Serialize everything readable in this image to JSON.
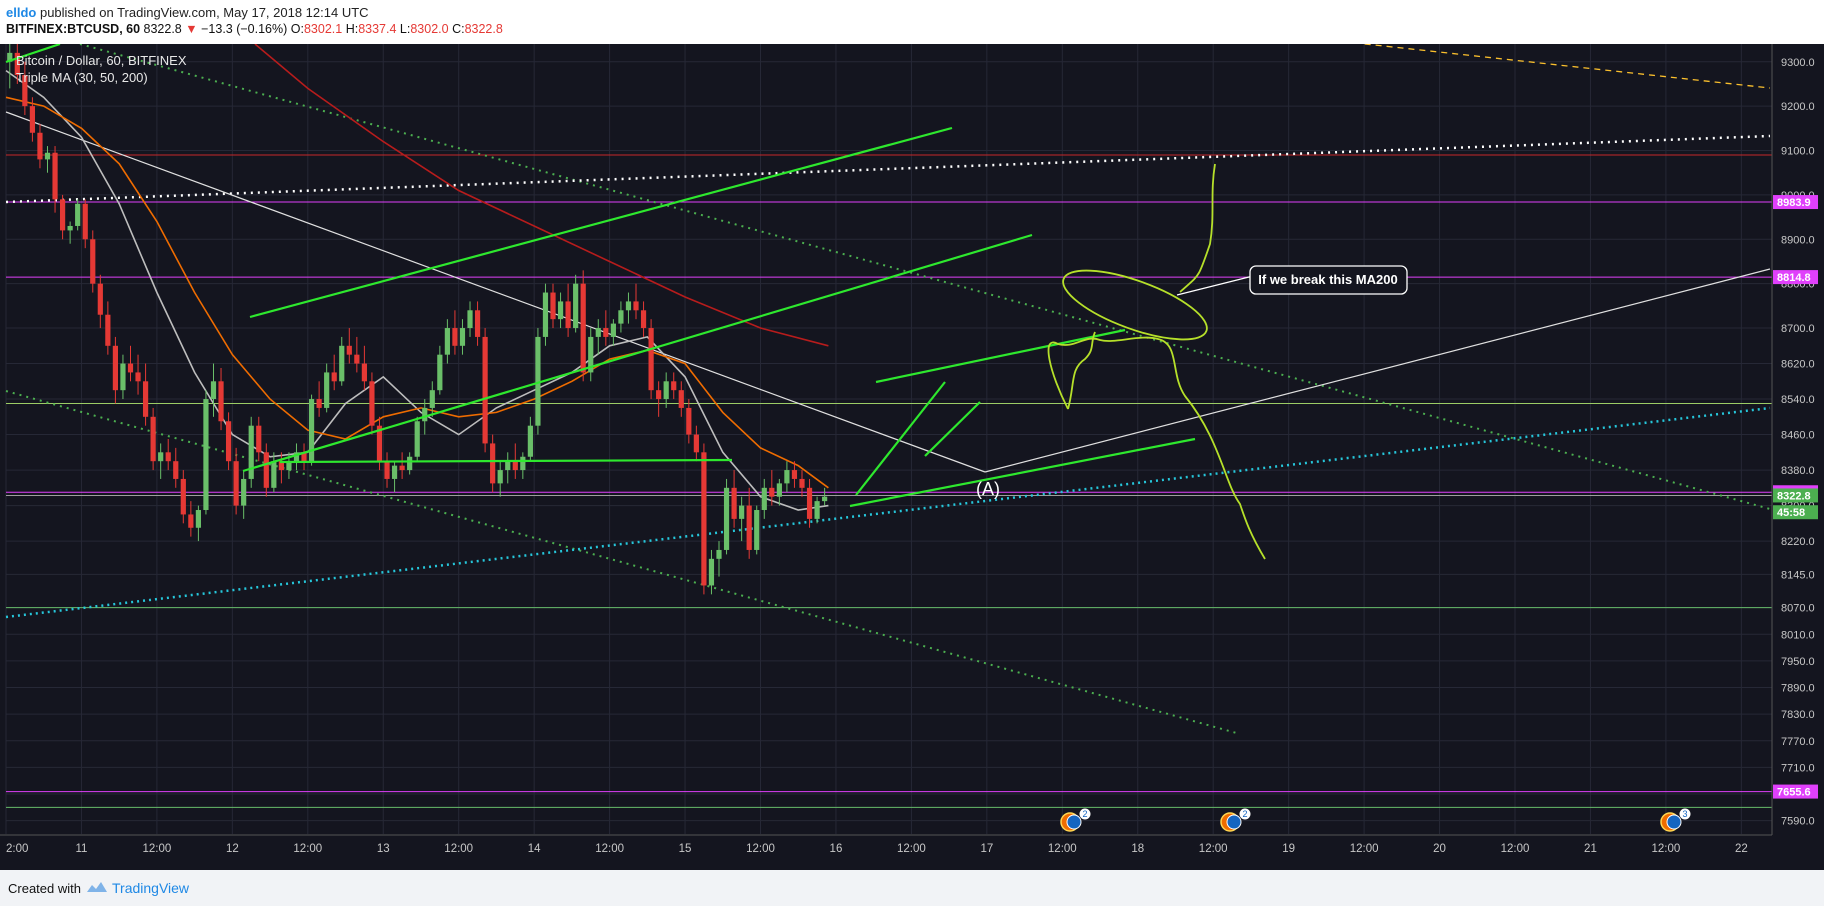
{
  "header": {
    "user": "elldo",
    "published_text": "published on TradingView.com, May 17, 2018 12:14 UTC",
    "symbol": "BITFINEX:BTCUSD, 60",
    "last": "8322.8",
    "change_arrow": "▼",
    "change": "−13.3 (−0.16%)",
    "o_label": "O:",
    "o": "8302.1",
    "h_label": "H:",
    "h": "8337.4",
    "l_label": "L:",
    "l": "8302.0",
    "c_label": "C:",
    "c": "8322.8"
  },
  "legend": {
    "series": "Bitcoin / Dollar, 60, BITFINEX",
    "indicator": "Triple MA (30, 50, 200)"
  },
  "footer": {
    "created_with": "Created with",
    "brand": "TradingView"
  },
  "chart_data": {
    "type": "candlestick",
    "ylim": [
      7560,
      9340
    ],
    "price_ticks": [
      9300,
      9200,
      9100,
      9000,
      8900,
      8800,
      8700,
      8620,
      8540,
      8460,
      8380,
      8300,
      8220,
      8145,
      8070,
      8010,
      7950,
      7890,
      7830,
      7770,
      7710,
      7650,
      7590
    ],
    "time_axis": [
      {
        "t": 0,
        "label": "2:00"
      },
      {
        "t": 1,
        "label": "11"
      },
      {
        "t": 2,
        "label": "12:00"
      },
      {
        "t": 3,
        "label": "12"
      },
      {
        "t": 4,
        "label": "12:00"
      },
      {
        "t": 5,
        "label": "13"
      },
      {
        "t": 6,
        "label": "12:00"
      },
      {
        "t": 7,
        "label": "14"
      },
      {
        "t": 8,
        "label": "12:00"
      },
      {
        "t": 9,
        "label": "15"
      },
      {
        "t": 10,
        "label": "12:00"
      },
      {
        "t": 11,
        "label": "16"
      },
      {
        "t": 12,
        "label": "12:00"
      },
      {
        "t": 13,
        "label": "17"
      },
      {
        "t": 14,
        "label": "12:00"
      },
      {
        "t": 15,
        "label": "18"
      },
      {
        "t": 16,
        "label": "12:00"
      },
      {
        "t": 17,
        "label": "19"
      },
      {
        "t": 18,
        "label": "12:00"
      },
      {
        "t": 19,
        "label": "20"
      },
      {
        "t": 20,
        "label": "12:00"
      },
      {
        "t": 21,
        "label": "21"
      },
      {
        "t": 22,
        "label": "12:00"
      },
      {
        "t": 23,
        "label": "22"
      }
    ],
    "price_labels": [
      {
        "value": 8983.9,
        "text": "8983.9",
        "color": "#e040fb"
      },
      {
        "value": 8814.8,
        "text": "8814.8",
        "color": "#e040fb"
      },
      {
        "value": 8330.0,
        "text": "8330.0",
        "color": "#e040fb"
      },
      {
        "value": 8322.8,
        "text": "8322.8",
        "color": "#4caf50"
      },
      {
        "value": 8285,
        "text": "45:58",
        "color": "#4caf50"
      },
      {
        "value": 7655.6,
        "text": "7655.6",
        "color": "#e040fb"
      }
    ],
    "horizontal_lines": [
      {
        "value": 9090,
        "color": "#c62828"
      },
      {
        "value": 8983.9,
        "color": "#e040fb"
      },
      {
        "value": 8814.8,
        "color": "#e040fb"
      },
      {
        "value": 8530,
        "color": "#9ccc65"
      },
      {
        "value": 8330,
        "color": "#e040fb"
      },
      {
        "value": 8322.8,
        "color": "#9e9e9e"
      },
      {
        "value": 8070,
        "color": "#66bb6a"
      },
      {
        "value": 7655.6,
        "color": "#e040fb"
      },
      {
        "value": 7620,
        "color": "#66bb6a"
      }
    ],
    "candles": [
      [
        0.05,
        9300,
        9340,
        9240,
        9320
      ],
      [
        0.15,
        9320,
        9340,
        9250,
        9270
      ],
      [
        0.25,
        9270,
        9300,
        9180,
        9200
      ],
      [
        0.35,
        9200,
        9220,
        9120,
        9140
      ],
      [
        0.45,
        9140,
        9160,
        9060,
        9080
      ],
      [
        0.55,
        9080,
        9110,
        9050,
        9095
      ],
      [
        0.65,
        9095,
        9110,
        8960,
        8990
      ],
      [
        0.75,
        8990,
        9000,
        8900,
        8920
      ],
      [
        0.85,
        8920,
        8940,
        8890,
        8930
      ],
      [
        0.95,
        8930,
        8990,
        8920,
        8980
      ],
      [
        1.05,
        8980,
        8990,
        8880,
        8900
      ],
      [
        1.15,
        8900,
        8920,
        8780,
        8800
      ],
      [
        1.25,
        8800,
        8820,
        8700,
        8730
      ],
      [
        1.35,
        8730,
        8760,
        8640,
        8660
      ],
      [
        1.45,
        8660,
        8680,
        8530,
        8560
      ],
      [
        1.55,
        8560,
        8640,
        8540,
        8620
      ],
      [
        1.65,
        8620,
        8660,
        8580,
        8600
      ],
      [
        1.75,
        8600,
        8640,
        8550,
        8580
      ],
      [
        1.85,
        8580,
        8620,
        8480,
        8500
      ],
      [
        1.95,
        8500,
        8520,
        8380,
        8400
      ],
      [
        2.05,
        8400,
        8440,
        8360,
        8420
      ],
      [
        2.15,
        8420,
        8450,
        8380,
        8400
      ],
      [
        2.25,
        8400,
        8430,
        8340,
        8360
      ],
      [
        2.35,
        8360,
        8380,
        8260,
        8280
      ],
      [
        2.45,
        8280,
        8310,
        8230,
        8250
      ],
      [
        2.55,
        8250,
        8300,
        8220,
        8290
      ],
      [
        2.65,
        8290,
        8560,
        8280,
        8540
      ],
      [
        2.75,
        8540,
        8620,
        8500,
        8580
      ],
      [
        2.85,
        8580,
        8610,
        8470,
        8490
      ],
      [
        2.95,
        8490,
        8510,
        8380,
        8400
      ],
      [
        3.05,
        8400,
        8430,
        8280,
        8300
      ],
      [
        3.15,
        8300,
        8380,
        8270,
        8360
      ],
      [
        3.25,
        8360,
        8500,
        8340,
        8480
      ],
      [
        3.35,
        8480,
        8500,
        8400,
        8420
      ],
      [
        3.45,
        8420,
        8440,
        8320,
        8340
      ],
      [
        3.55,
        8340,
        8420,
        8330,
        8400
      ],
      [
        3.65,
        8400,
        8420,
        8350,
        8380
      ],
      [
        3.75,
        8380,
        8420,
        8360,
        8400
      ],
      [
        3.85,
        8400,
        8440,
        8380,
        8420
      ],
      [
        3.95,
        8420,
        8440,
        8380,
        8400
      ],
      [
        4.05,
        8400,
        8550,
        8390,
        8540
      ],
      [
        4.15,
        8540,
        8580,
        8500,
        8520
      ],
      [
        4.25,
        8520,
        8620,
        8510,
        8600
      ],
      [
        4.35,
        8600,
        8640,
        8560,
        8580
      ],
      [
        4.45,
        8580,
        8680,
        8570,
        8660
      ],
      [
        4.55,
        8660,
        8700,
        8620,
        8640
      ],
      [
        4.65,
        8640,
        8680,
        8600,
        8620
      ],
      [
        4.75,
        8620,
        8660,
        8560,
        8580
      ],
      [
        4.85,
        8580,
        8600,
        8460,
        8480
      ],
      [
        4.95,
        8480,
        8500,
        8380,
        8400
      ],
      [
        5.05,
        8400,
        8420,
        8340,
        8360
      ],
      [
        5.15,
        8360,
        8400,
        8330,
        8390
      ],
      [
        5.25,
        8390,
        8420,
        8360,
        8380
      ],
      [
        5.35,
        8380,
        8420,
        8370,
        8410
      ],
      [
        5.45,
        8410,
        8500,
        8400,
        8490
      ],
      [
        5.55,
        8490,
        8540,
        8460,
        8520
      ],
      [
        5.65,
        8520,
        8580,
        8500,
        8560
      ],
      [
        5.75,
        8560,
        8660,
        8550,
        8640
      ],
      [
        5.85,
        8640,
        8720,
        8620,
        8700
      ],
      [
        5.95,
        8700,
        8740,
        8640,
        8660
      ],
      [
        6.05,
        8660,
        8720,
        8640,
        8700
      ],
      [
        6.15,
        8700,
        8760,
        8680,
        8740
      ],
      [
        6.25,
        8740,
        8760,
        8660,
        8680
      ],
      [
        6.35,
        8680,
        8700,
        8420,
        8440
      ],
      [
        6.45,
        8440,
        8460,
        8330,
        8350
      ],
      [
        6.55,
        8350,
        8400,
        8320,
        8380
      ],
      [
        6.65,
        8380,
        8420,
        8350,
        8400
      ],
      [
        6.75,
        8400,
        8440,
        8360,
        8380
      ],
      [
        6.85,
        8380,
        8420,
        8360,
        8410
      ],
      [
        6.95,
        8410,
        8500,
        8400,
        8480
      ],
      [
        7.05,
        8480,
        8700,
        8460,
        8680
      ],
      [
        7.15,
        8680,
        8800,
        8660,
        8780
      ],
      [
        7.25,
        8780,
        8800,
        8700,
        8720
      ],
      [
        7.35,
        8720,
        8780,
        8700,
        8760
      ],
      [
        7.45,
        8760,
        8800,
        8680,
        8700
      ],
      [
        7.55,
        8700,
        8820,
        8690,
        8800
      ],
      [
        7.65,
        8800,
        8830,
        8580,
        8600
      ],
      [
        7.75,
        8600,
        8700,
        8580,
        8680
      ],
      [
        7.85,
        8680,
        8720,
        8640,
        8700
      ],
      [
        7.95,
        8700,
        8740,
        8660,
        8680
      ],
      [
        8.05,
        8680,
        8720,
        8660,
        8710
      ],
      [
        8.15,
        8710,
        8760,
        8690,
        8740
      ],
      [
        8.25,
        8740,
        8780,
        8710,
        8760
      ],
      [
        8.35,
        8760,
        8800,
        8720,
        8740
      ],
      [
        8.45,
        8740,
        8760,
        8680,
        8700
      ],
      [
        8.55,
        8700,
        8720,
        8540,
        8560
      ],
      [
        8.65,
        8560,
        8580,
        8500,
        8540
      ],
      [
        8.75,
        8540,
        8600,
        8520,
        8580
      ],
      [
        8.85,
        8580,
        8600,
        8540,
        8560
      ],
      [
        8.95,
        8560,
        8580,
        8500,
        8520
      ],
      [
        9.05,
        8520,
        8540,
        8440,
        8460
      ],
      [
        9.15,
        8460,
        8480,
        8400,
        8420
      ],
      [
        9.25,
        8420,
        8440,
        8100,
        8120
      ],
      [
        9.35,
        8120,
        8200,
        8100,
        8180
      ],
      [
        9.45,
        8180,
        8220,
        8140,
        8200
      ],
      [
        9.55,
        8200,
        8360,
        8190,
        8340
      ],
      [
        9.65,
        8340,
        8380,
        8250,
        8270
      ],
      [
        9.75,
        8270,
        8320,
        8220,
        8300
      ],
      [
        9.85,
        8300,
        8340,
        8180,
        8200
      ],
      [
        9.95,
        8200,
        8300,
        8190,
        8290
      ],
      [
        10.05,
        8290,
        8360,
        8270,
        8340
      ],
      [
        10.15,
        8340,
        8380,
        8300,
        8320
      ],
      [
        10.25,
        8320,
        8360,
        8300,
        8350
      ],
      [
        10.35,
        8350,
        8400,
        8330,
        8380
      ],
      [
        10.45,
        8380,
        8400,
        8340,
        8360
      ],
      [
        10.55,
        8360,
        8380,
        8320,
        8340
      ],
      [
        10.65,
        8340,
        8360,
        8250,
        8270
      ],
      [
        10.75,
        8270,
        8320,
        8260,
        8310
      ],
      [
        10.85,
        8310,
        8340,
        8300,
        8320
      ]
    ],
    "ma_series": [
      {
        "name": "MA30",
        "color": "#bdbdbd",
        "points": [
          [
            0,
            9280
          ],
          [
            0.5,
            9220
          ],
          [
            1.0,
            9130
          ],
          [
            1.5,
            8980
          ],
          [
            2.0,
            8780
          ],
          [
            2.5,
            8600
          ],
          [
            3.0,
            8460
          ],
          [
            3.5,
            8410
          ],
          [
            4.0,
            8420
          ],
          [
            4.5,
            8530
          ],
          [
            5.0,
            8590
          ],
          [
            5.5,
            8510
          ],
          [
            6.0,
            8460
          ],
          [
            6.5,
            8520
          ],
          [
            7.0,
            8560
          ],
          [
            7.5,
            8600
          ],
          [
            8.0,
            8660
          ],
          [
            8.5,
            8680
          ],
          [
            9.0,
            8590
          ],
          [
            9.5,
            8420
          ],
          [
            10.0,
            8320
          ],
          [
            10.5,
            8290
          ],
          [
            10.9,
            8300
          ]
        ]
      },
      {
        "name": "MA50",
        "color": "#ef6c00",
        "points": [
          [
            0,
            9220
          ],
          [
            0.5,
            9200
          ],
          [
            1.0,
            9150
          ],
          [
            1.5,
            9070
          ],
          [
            2.0,
            8940
          ],
          [
            2.5,
            8780
          ],
          [
            3.0,
            8640
          ],
          [
            3.5,
            8540
          ],
          [
            4.0,
            8470
          ],
          [
            4.5,
            8450
          ],
          [
            5.0,
            8500
          ],
          [
            5.5,
            8520
          ],
          [
            6.0,
            8500
          ],
          [
            6.5,
            8510
          ],
          [
            7.0,
            8540
          ],
          [
            7.5,
            8580
          ],
          [
            8.0,
            8630
          ],
          [
            8.5,
            8650
          ],
          [
            9.0,
            8620
          ],
          [
            9.5,
            8510
          ],
          [
            10.0,
            8430
          ],
          [
            10.5,
            8390
          ],
          [
            10.9,
            8340
          ]
        ]
      },
      {
        "name": "MA200",
        "color": "#b71c1c",
        "points": [
          [
            3.3,
            9340
          ],
          [
            4.0,
            9240
          ],
          [
            5.0,
            9120
          ],
          [
            6.0,
            9010
          ],
          [
            7.0,
            8930
          ],
          [
            8.0,
            8850
          ],
          [
            9.0,
            8770
          ],
          [
            10.0,
            8700
          ],
          [
            10.9,
            8660
          ]
        ]
      }
    ],
    "annotations": [
      {
        "text": "If we break this MA200"
      },
      {
        "text": "(A)"
      }
    ],
    "event_badges": [
      "2",
      "2",
      "3"
    ]
  }
}
